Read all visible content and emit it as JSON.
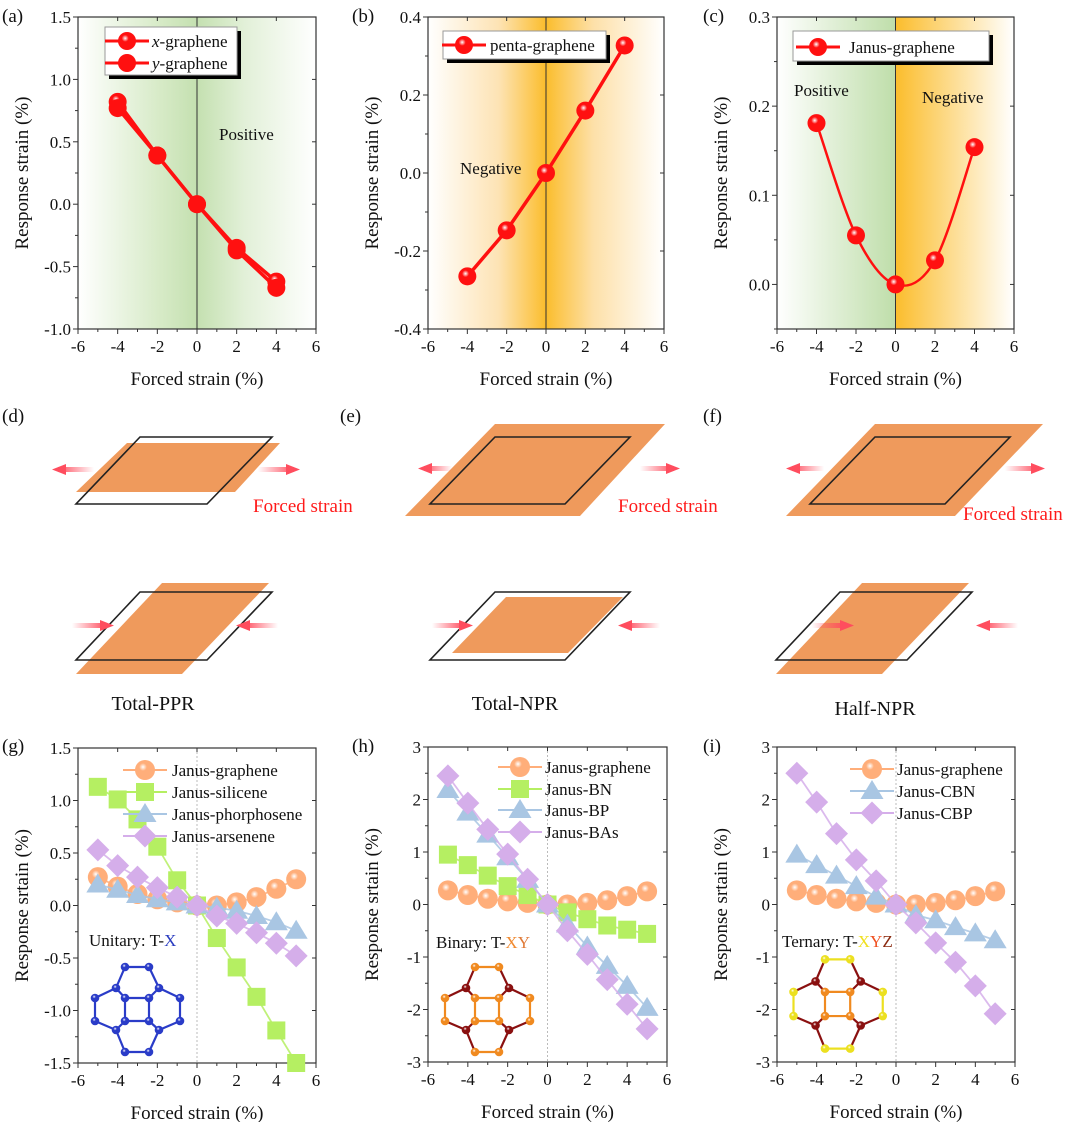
{
  "panel_labels": [
    "(a)",
    "(b)",
    "(c)",
    "(d)",
    "(e)",
    "(f)",
    "(g)",
    "(h)",
    "(i)"
  ],
  "schematic": {
    "forced_strain": "Forced strain",
    "captions": [
      "Total-PPR",
      "Total-NPR",
      "Half-NPR"
    ],
    "colors": {
      "sheet": "#ef9a5c",
      "frame": "#222222",
      "arrow": "#ff4d5e"
    }
  },
  "chart_data": [
    {
      "id": "a",
      "type": "line",
      "xlabel": "Forced strain (%)",
      "ylabel": "Response strain (%)",
      "xlim": [
        -6,
        6
      ],
      "ylim": [
        -1.0,
        1.5
      ],
      "xticks": [
        "-6",
        "-4",
        "-2",
        "0",
        "2",
        "4",
        "6"
      ],
      "yticks": [
        "-1.0",
        "-0.5",
        "0.0",
        "0.5",
        "1.0",
        "1.5"
      ],
      "background": "green",
      "annotations": [
        {
          "text": "Positive"
        }
      ],
      "series": [
        {
          "name": "x-graphene",
          "italic_prefix": "x",
          "suffix": "-graphene",
          "marker": "sphere",
          "color": "#ff1010",
          "x": [
            -4,
            -2,
            0,
            2,
            4
          ],
          "y": [
            0.82,
            0.39,
            0,
            -0.35,
            -0.62
          ]
        },
        {
          "name": "y-graphene",
          "italic_prefix": "y",
          "suffix": "-graphene",
          "marker": "circle",
          "color": "#ff1010",
          "x": [
            -4,
            -2,
            0,
            2,
            4
          ],
          "y": [
            0.77,
            0.39,
            0,
            -0.37,
            -0.67
          ]
        }
      ]
    },
    {
      "id": "b",
      "type": "line",
      "xlabel": "Forced strain (%)",
      "ylabel": "Response strain (%)",
      "xlim": [
        -6,
        6
      ],
      "ylim": [
        -0.4,
        0.4
      ],
      "xticks": [
        "-6",
        "-4",
        "-2",
        "0",
        "2",
        "4",
        "6"
      ],
      "yticks": [
        "-0.4",
        "-0.2",
        "0.0",
        "0.2",
        "0.4"
      ],
      "background": "orange",
      "annotations": [
        {
          "text": "Negative"
        }
      ],
      "series": [
        {
          "name": "penta-graphene",
          "marker": "sphere",
          "color": "#ff1010",
          "x": [
            -4,
            -2,
            0,
            2,
            4
          ],
          "y": [
            -0.265,
            -0.147,
            0,
            0.16,
            0.327
          ]
        }
      ]
    },
    {
      "id": "c",
      "type": "line",
      "xlabel": "Forced strain (%)",
      "ylabel": "Response strain (%)",
      "xlim": [
        -6,
        6
      ],
      "ylim": [
        -0.05,
        0.3
      ],
      "xticks": [
        "-6",
        "-4",
        "-2",
        "0",
        "2",
        "4",
        "6"
      ],
      "yticks": [
        "0.0",
        "0.1",
        "0.2",
        "0.3"
      ],
      "background": "green-orange",
      "annotations": [
        {
          "text": "Positive"
        },
        {
          "text": "Negative"
        }
      ],
      "series": [
        {
          "name": "Janus-graphene",
          "marker": "sphere",
          "color": "#ff1010",
          "smooth": true,
          "x": [
            -4,
            -2,
            0,
            2,
            4
          ],
          "y": [
            0.181,
            0.055,
            0,
            0.027,
            0.154
          ]
        }
      ]
    },
    {
      "id": "g",
      "type": "line",
      "xlabel": "Forced strain (%)",
      "ylabel": "Response srtain (%)",
      "xlim": [
        -6,
        6
      ],
      "ylim": [
        -1.5,
        1.5
      ],
      "xticks": [
        "-6",
        "-4",
        "-2",
        "0",
        "2",
        "4",
        "6"
      ],
      "yticks": [
        "-1.5",
        "-1.0",
        "-0.5",
        "0.0",
        "0.5",
        "1.0",
        "1.5"
      ],
      "inset_label": {
        "prefix": "Unitary: T-",
        "parts": [
          {
            "text": "X",
            "color": "#2a3cc0"
          }
        ]
      },
      "series": [
        {
          "name": "Janus-graphene",
          "marker": "sphere",
          "color": "#ffae7a",
          "x": [
            -5,
            -4,
            -3,
            -2,
            -1,
            0,
            1,
            2,
            3,
            4,
            5
          ],
          "y": [
            0.27,
            0.18,
            0.11,
            0.06,
            0.03,
            0,
            0,
            0.03,
            0.08,
            0.16,
            0.25
          ]
        },
        {
          "name": "Janus-silicene",
          "marker": "square",
          "color": "#b5ef62",
          "x": [
            -5,
            -4,
            -3,
            -2,
            -1,
            0,
            1,
            2,
            3,
            4,
            5
          ],
          "y": [
            1.13,
            1.01,
            0.82,
            0.56,
            0.24,
            0,
            -0.31,
            -0.59,
            -0.87,
            -1.19,
            -1.5
          ]
        },
        {
          "name": "Janus-phorphosene",
          "marker": "triangle",
          "color": "#a9c6e3",
          "x": [
            -5,
            -4,
            -3,
            -2,
            -1,
            0,
            1,
            2,
            3,
            4,
            5
          ],
          "y": [
            0.2,
            0.15,
            0.1,
            0.06,
            0.03,
            0,
            -0.02,
            -0.05,
            -0.1,
            -0.16,
            -0.24
          ]
        },
        {
          "name": "Janus-arsenene",
          "marker": "diamond",
          "color": "#d5aeea",
          "x": [
            -5,
            -4,
            -3,
            -2,
            -1,
            0,
            1,
            2,
            3,
            4,
            5
          ],
          "y": [
            0.53,
            0.38,
            0.27,
            0.17,
            0.08,
            0,
            -0.1,
            -0.17,
            -0.26,
            -0.36,
            -0.48
          ]
        }
      ]
    },
    {
      "id": "h",
      "type": "line",
      "xlabel": "Forced strain (%)",
      "ylabel": "Response srtain (%)",
      "xlim": [
        -6,
        6
      ],
      "ylim": [
        -3,
        3
      ],
      "xticks": [
        "-6",
        "-4",
        "-2",
        "0",
        "2",
        "4",
        "6"
      ],
      "yticks": [
        "-3",
        "-2",
        "-1",
        "0",
        "1",
        "2",
        "3"
      ],
      "inset_label": {
        "prefix": "Binary: T-",
        "parts": [
          {
            "text": "X",
            "color": "#f08a30"
          },
          {
            "text": "Y",
            "color": "#e07a38"
          }
        ]
      },
      "series": [
        {
          "name": "Janus-graphene",
          "marker": "sphere",
          "color": "#ffae7a",
          "x": [
            -5,
            -4,
            -3,
            -2,
            -1,
            0,
            1,
            2,
            3,
            4,
            5
          ],
          "y": [
            0.27,
            0.18,
            0.11,
            0.06,
            0.03,
            0,
            0,
            0.03,
            0.08,
            0.16,
            0.25
          ]
        },
        {
          "name": "Janus-BN",
          "marker": "square",
          "color": "#b5ef62",
          "x": [
            -5,
            -4,
            -3,
            -2,
            -1,
            0,
            1,
            2,
            3,
            4,
            5
          ],
          "y": [
            0.95,
            0.75,
            0.55,
            0.35,
            0.18,
            0,
            -0.15,
            -0.28,
            -0.4,
            -0.48,
            -0.56
          ]
        },
        {
          "name": "Janus-BP",
          "marker": "triangle",
          "color": "#a9c6e3",
          "x": [
            -5,
            -4,
            -3,
            -2,
            -1,
            0,
            1,
            2,
            3,
            4,
            5
          ],
          "y": [
            2.18,
            1.75,
            1.33,
            0.9,
            0.47,
            0,
            -0.38,
            -0.8,
            -1.17,
            -1.55,
            -1.97
          ]
        },
        {
          "name": "Janus-BAs",
          "marker": "diamond",
          "color": "#d5aeea",
          "x": [
            -5,
            -4,
            -3,
            -2,
            -1,
            0,
            1,
            2,
            3,
            4,
            5
          ],
          "y": [
            2.45,
            1.93,
            1.43,
            0.96,
            0.48,
            0,
            -0.5,
            -0.95,
            -1.43,
            -1.9,
            -2.37
          ]
        }
      ]
    },
    {
      "id": "i",
      "type": "line",
      "xlabel": "Forced strain (%)",
      "ylabel": "Response srtain (%)",
      "xlim": [
        -6,
        6
      ],
      "ylim": [
        -3,
        3
      ],
      "xticks": [
        "-6",
        "-4",
        "-2",
        "0",
        "2",
        "4",
        "6"
      ],
      "yticks": [
        "-3",
        "-2",
        "-1",
        "0",
        "1",
        "2",
        "3"
      ],
      "inset_label": {
        "prefix": "Ternary: T-",
        "parts": [
          {
            "text": "X",
            "color": "#f0e020"
          },
          {
            "text": "Y",
            "color": "#f05020"
          },
          {
            "text": "Z",
            "color": "#8a2a10"
          }
        ]
      },
      "series": [
        {
          "name": "Janus-graphene",
          "marker": "sphere",
          "color": "#ffae7a",
          "x": [
            -5,
            -4,
            -3,
            -2,
            -1,
            0,
            1,
            2,
            3,
            4,
            5
          ],
          "y": [
            0.27,
            0.18,
            0.11,
            0.06,
            0.03,
            0,
            0,
            0.03,
            0.08,
            0.16,
            0.25
          ]
        },
        {
          "name": "Janus-CBN",
          "marker": "triangle",
          "color": "#a9c6e3",
          "x": [
            -5,
            -4,
            -3,
            -2,
            -1,
            0,
            1,
            2,
            3,
            4,
            5
          ],
          "y": [
            0.95,
            0.75,
            0.55,
            0.35,
            0.15,
            0,
            -0.2,
            -0.3,
            -0.43,
            -0.55,
            -0.68
          ]
        },
        {
          "name": "Janus-CBP",
          "marker": "diamond",
          "color": "#d5aeea",
          "x": [
            -5,
            -4,
            -3,
            -2,
            -1,
            0,
            1,
            2,
            3,
            4,
            5
          ],
          "y": [
            2.5,
            1.95,
            1.35,
            0.85,
            0.45,
            0,
            -0.35,
            -0.73,
            -1.1,
            -1.55,
            -2.08
          ]
        }
      ]
    }
  ]
}
